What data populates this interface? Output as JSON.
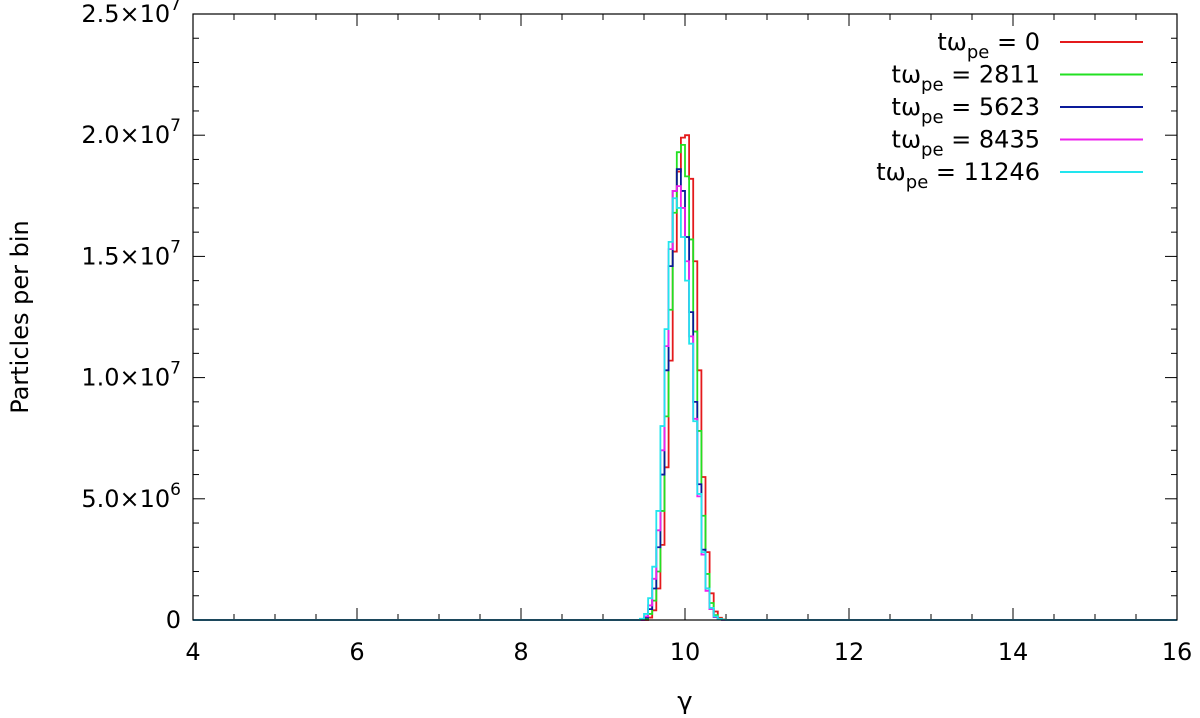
{
  "chart_data": {
    "type": "line",
    "title": "",
    "xlabel": "γ",
    "ylabel": "Particles per bin",
    "xlim": [
      4,
      16
    ],
    "ylim": [
      0,
      25000000
    ],
    "x_ticks": [
      4,
      6,
      8,
      10,
      12,
      14,
      16
    ],
    "y_ticks": [
      {
        "value": 0,
        "mantissa": "0",
        "exponent": ""
      },
      {
        "value": 5000000,
        "mantissa": "5.0×10",
        "exponent": "6"
      },
      {
        "value": 10000000,
        "mantissa": "1.0×10",
        "exponent": "7"
      },
      {
        "value": 15000000,
        "mantissa": "1.5×10",
        "exponent": "7"
      },
      {
        "value": 20000000,
        "mantissa": "2.0×10",
        "exponent": "7"
      },
      {
        "value": 25000000,
        "mantissa": "2.5×10",
        "exponent": "7"
      }
    ],
    "legend_position": "top-right",
    "grid": false,
    "step_style": "histogram",
    "series": [
      {
        "name_prefix": "tω",
        "name_sub": "pe",
        "name_suffix": " = 0",
        "color": "#e41a1c",
        "x": [
          4,
          9.5,
          9.55,
          9.6,
          9.65,
          9.7,
          9.75,
          9.8,
          9.85,
          9.9,
          9.95,
          10.0,
          10.05,
          10.1,
          10.15,
          10.2,
          10.25,
          10.3,
          10.35,
          10.4,
          10.45,
          10.5,
          16
        ],
        "y": [
          0,
          0,
          100000,
          400000,
          1300000,
          3100000,
          6300000,
          10700000,
          15200000,
          18500000,
          19900000,
          20000000,
          18200000,
          14800000,
          10300000,
          5900000,
          2800000,
          1100000,
          350000,
          90000,
          20000,
          0,
          0
        ]
      },
      {
        "name_prefix": "tω",
        "name_sub": "pe",
        "name_suffix": " = 2811",
        "color": "#22e022",
        "x": [
          4,
          9.45,
          9.5,
          9.55,
          9.6,
          9.65,
          9.7,
          9.75,
          9.8,
          9.85,
          9.9,
          9.95,
          10.0,
          10.05,
          10.1,
          10.15,
          10.2,
          10.25,
          10.3,
          10.35,
          10.4,
          10.45,
          10.5,
          16
        ],
        "y": [
          0,
          0,
          50000,
          250000,
          800000,
          2000000,
          4500000,
          8400000,
          12800000,
          16800000,
          19300000,
          19600000,
          18300000,
          15700000,
          11900000,
          7800000,
          4300000,
          1900000,
          700000,
          200000,
          50000,
          10000,
          0,
          0
        ]
      },
      {
        "name_prefix": "tω",
        "name_sub": "pe",
        "name_suffix": " = 5623",
        "color": "#0a1a99",
        "x": [
          4,
          9.45,
          9.5,
          9.55,
          9.6,
          9.65,
          9.7,
          9.75,
          9.8,
          9.85,
          9.9,
          9.95,
          10.0,
          10.05,
          10.1,
          10.15,
          10.2,
          10.25,
          10.3,
          10.35,
          10.4,
          10.45,
          10.5,
          16
        ],
        "y": [
          0,
          0,
          100000,
          450000,
          1300000,
          3000000,
          6000000,
          10300000,
          14600000,
          17700000,
          18600000,
          17700000,
          15800000,
          12700000,
          9000000,
          5600000,
          2900000,
          1300000,
          450000,
          120000,
          30000,
          5000,
          0,
          0
        ]
      },
      {
        "name_prefix": "tω",
        "name_sub": "pe",
        "name_suffix": " = 8435",
        "color": "#ee22ee",
        "x": [
          4,
          9.45,
          9.5,
          9.55,
          9.6,
          9.65,
          9.7,
          9.75,
          9.8,
          9.85,
          9.9,
          9.95,
          10.0,
          10.05,
          10.1,
          10.15,
          10.2,
          10.25,
          10.3,
          10.35,
          10.4,
          10.45,
          10.5,
          16
        ],
        "y": [
          0,
          0,
          150000,
          600000,
          1700000,
          3700000,
          7000000,
          11300000,
          15300000,
          17700000,
          17900000,
          17000000,
          14800000,
          11700000,
          8300000,
          5100000,
          2700000,
          1200000,
          450000,
          130000,
          30000,
          5000,
          0,
          0
        ]
      },
      {
        "name_prefix": "tω",
        "name_sub": "pe",
        "name_suffix": " = 11246",
        "color": "#22e5ee",
        "x": [
          4,
          9.4,
          9.45,
          9.5,
          9.55,
          9.6,
          9.65,
          9.7,
          9.75,
          9.8,
          9.85,
          9.9,
          9.95,
          10.0,
          10.05,
          10.1,
          10.15,
          10.2,
          10.25,
          10.3,
          10.35,
          10.4,
          10.45,
          10.5,
          16
        ],
        "y": [
          0,
          0,
          50000,
          250000,
          900000,
          2200000,
          4500000,
          8000000,
          12000000,
          15600000,
          17400000,
          17000000,
          15800000,
          14000000,
          11400000,
          8200000,
          5200000,
          2800000,
          1300000,
          500000,
          150000,
          40000,
          10000,
          0,
          0
        ]
      }
    ]
  }
}
